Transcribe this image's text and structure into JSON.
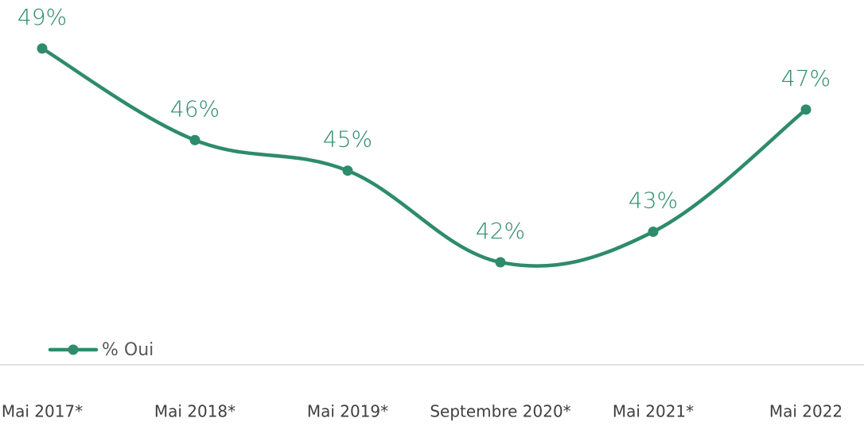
{
  "chart_data": {
    "type": "line",
    "categories": [
      "Mai 2017*",
      "Mai 2018*",
      "Mai 2019*",
      "Septembre 2020*",
      "Mai 2021*",
      "Mai 2022"
    ],
    "series": [
      {
        "name": "% Oui",
        "color": "#2e8b6c",
        "values": [
          49,
          46,
          45,
          42,
          43,
          47
        ],
        "value_labels": [
          "49%",
          "46%",
          "45%",
          "42%",
          "43%",
          "47%"
        ]
      }
    ],
    "legend": "bottom-left",
    "smooth": true
  }
}
